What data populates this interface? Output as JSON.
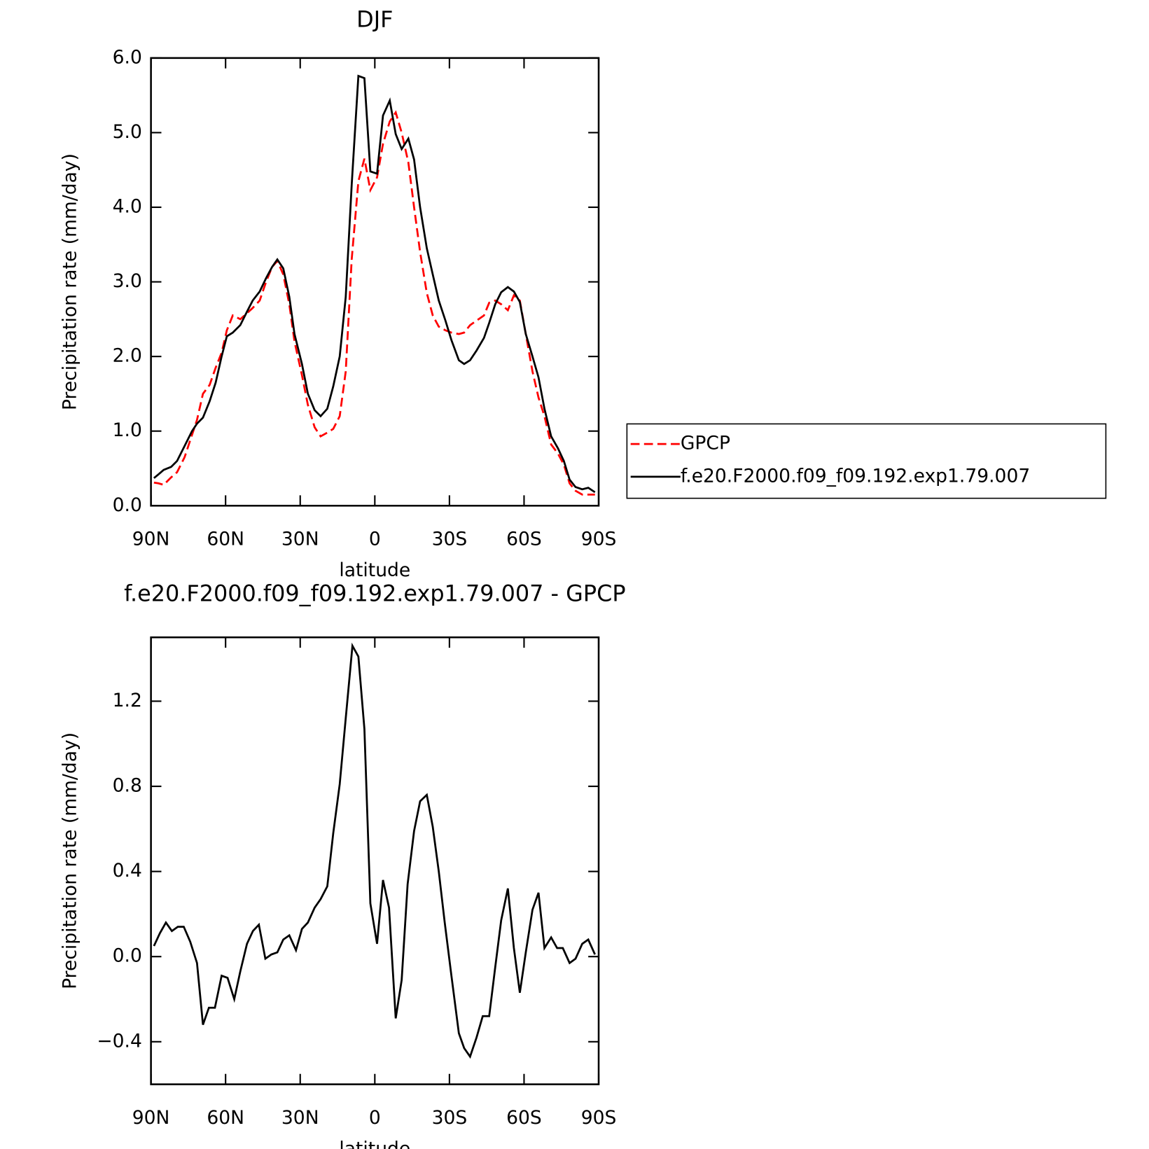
{
  "chart_data": [
    {
      "type": "line",
      "title": "DJF",
      "xlabel": "latitude",
      "ylabel": "Precipitation rate (mm/day)",
      "x": [
        88.8,
        87.0,
        84.9,
        81.9,
        79.5,
        76.5,
        73.5,
        71.5,
        69.1,
        66.4,
        64.0,
        61.6,
        59.5,
        57.1,
        54.1,
        51.4,
        49.1,
        46.3,
        43.7,
        41.3,
        39.2,
        36.8,
        34.4,
        32.3,
        29.3,
        26.9,
        24.2,
        21.8,
        19.1,
        16.7,
        14.1,
        11.7,
        9.3,
        6.6,
        4.2,
        1.8,
        -0.9,
        -3.3,
        -6.0,
        -8.4,
        -10.8,
        -13.5,
        -15.8,
        -18.2,
        -20.9,
        -23.3,
        -25.7,
        -28.4,
        -30.8,
        -33.8,
        -35.9,
        -38.3,
        -40.9,
        -43.9,
        -46.0,
        -48.4,
        -50.8,
        -53.5,
        -55.9,
        -58.3,
        -60.7,
        -63.4,
        -65.8,
        -68.2,
        -70.9,
        -73.6,
        -76.0,
        -78.3,
        -80.7,
        -83.4,
        -85.8,
        -88.5
      ],
      "series": [
        {
          "name": "GPCP",
          "color": "#ff0000",
          "dash": "dashed",
          "values": [
            0.31,
            0.3,
            0.28,
            0.38,
            0.45,
            0.65,
            0.95,
            1.15,
            1.5,
            1.62,
            1.85,
            2.05,
            2.35,
            2.55,
            2.5,
            2.58,
            2.65,
            2.75,
            3.0,
            3.2,
            3.28,
            3.1,
            2.7,
            2.2,
            1.75,
            1.35,
            1.05,
            0.93,
            0.98,
            1.03,
            1.2,
            1.8,
            3.3,
            4.35,
            4.65,
            4.23,
            4.4,
            4.85,
            5.15,
            5.27,
            5.0,
            4.6,
            4.0,
            3.4,
            2.85,
            2.55,
            2.4,
            2.35,
            2.32,
            2.3,
            2.32,
            2.42,
            2.48,
            2.55,
            2.72,
            2.75,
            2.7,
            2.62,
            2.82,
            2.75,
            2.3,
            1.8,
            1.45,
            1.2,
            0.82,
            0.7,
            0.55,
            0.3,
            0.2,
            0.15,
            0.15,
            0.15
          ]
        },
        {
          "name": "f.e20.F2000.f09_f09.192.exp1.79.007",
          "color": "#000000",
          "dash": "solid",
          "values": [
            0.37,
            0.42,
            0.48,
            0.52,
            0.6,
            0.8,
            1.0,
            1.1,
            1.18,
            1.4,
            1.65,
            2.0,
            2.27,
            2.32,
            2.42,
            2.6,
            2.75,
            2.87,
            3.05,
            3.2,
            3.3,
            3.18,
            2.8,
            2.3,
            1.9,
            1.5,
            1.28,
            1.2,
            1.3,
            1.6,
            2.0,
            2.8,
            4.3,
            5.76,
            5.73,
            4.48,
            4.45,
            5.23,
            5.43,
            4.98,
            4.78,
            4.92,
            4.64,
            4.0,
            3.45,
            3.1,
            2.75,
            2.48,
            2.22,
            1.95,
            1.9,
            1.95,
            2.08,
            2.25,
            2.45,
            2.7,
            2.86,
            2.93,
            2.87,
            2.73,
            2.3,
            2.0,
            1.72,
            1.3,
            0.93,
            0.77,
            0.6,
            0.35,
            0.25,
            0.22,
            0.24,
            0.18
          ]
        }
      ],
      "xlim": [
        90,
        -90
      ],
      "xticks": [
        {
          "value": 90,
          "label": "90N"
        },
        {
          "value": 60,
          "label": "60N"
        },
        {
          "value": 30,
          "label": "30N"
        },
        0,
        {
          "value": -30,
          "label": "30S"
        },
        {
          "value": -60,
          "label": "60S"
        },
        {
          "value": -90,
          "label": "90S"
        }
      ],
      "ylim": [
        0,
        6
      ],
      "yticks": [
        {
          "value": 0,
          "label": "0.0"
        },
        {
          "value": 1,
          "label": "1.0"
        },
        {
          "value": 2,
          "label": "2.0"
        },
        {
          "value": 3,
          "label": "3.0"
        },
        {
          "value": 4,
          "label": "4.0"
        },
        {
          "value": 5,
          "label": "5.0"
        },
        {
          "value": 6,
          "label": "6.0"
        }
      ],
      "legend": "right"
    },
    {
      "type": "line",
      "title": "f.e20.F2000.f09_f09.192.exp1.79.007 - GPCP",
      "xlabel": "latitude",
      "ylabel": "Precipitation rate (mm/day)",
      "x": [
        88.8,
        86.4,
        84.0,
        81.6,
        79.2,
        76.8,
        74.2,
        71.5,
        69.1,
        66.7,
        64.3,
        61.6,
        59.2,
        56.5,
        54.1,
        51.4,
        49.0,
        46.6,
        44.0,
        41.6,
        39.2,
        36.8,
        34.4,
        31.7,
        29.3,
        26.9,
        24.2,
        21.8,
        19.1,
        16.7,
        14.1,
        11.7,
        9.0,
        6.6,
        4.2,
        1.8,
        -0.9,
        -3.3,
        -5.7,
        -8.4,
        -10.8,
        -13.2,
        -15.8,
        -18.2,
        -20.9,
        -23.3,
        -25.7,
        -28.1,
        -30.8,
        -33.8,
        -35.9,
        -38.3,
        -40.9,
        -43.4,
        -46.0,
        -48.4,
        -50.8,
        -53.5,
        -55.9,
        -58.3,
        -60.7,
        -63.4,
        -65.8,
        -68.2,
        -70.9,
        -73.3,
        -75.6,
        -78.3,
        -80.7,
        -83.4,
        -85.8,
        -88.5
      ],
      "series": [
        {
          "color": "#000000",
          "dash": "solid",
          "values": [
            0.05,
            0.11,
            0.16,
            0.12,
            0.14,
            0.14,
            0.07,
            -0.03,
            -0.32,
            -0.24,
            -0.24,
            -0.09,
            -0.1,
            -0.2,
            -0.07,
            0.06,
            0.12,
            0.15,
            -0.01,
            0.01,
            0.02,
            0.08,
            0.1,
            0.03,
            0.13,
            0.16,
            0.23,
            0.27,
            0.33,
            0.58,
            0.81,
            1.12,
            1.46,
            1.41,
            1.07,
            0.25,
            0.06,
            0.36,
            0.23,
            -0.29,
            -0.11,
            0.34,
            0.59,
            0.73,
            0.76,
            0.61,
            0.4,
            0.16,
            -0.09,
            -0.36,
            -0.43,
            -0.47,
            -0.38,
            -0.28,
            -0.28,
            -0.05,
            0.17,
            0.32,
            0.04,
            -0.17,
            0.02,
            0.22,
            0.3,
            0.04,
            0.09,
            0.04,
            0.04,
            -0.03,
            -0.01,
            0.06,
            0.08,
            0.01
          ]
        }
      ],
      "xlim": [
        90,
        -90
      ],
      "xticks": [
        {
          "value": 90,
          "label": "90N"
        },
        {
          "value": 60,
          "label": "60N"
        },
        {
          "value": 30,
          "label": "30N"
        },
        0,
        {
          "value": -30,
          "label": "30S"
        },
        {
          "value": -60,
          "label": "60S"
        },
        {
          "value": -90,
          "label": "90S"
        }
      ],
      "ylim": [
        -0.6,
        1.5
      ],
      "yticks": [
        {
          "value": -0.4,
          "label": "−0.4"
        },
        {
          "value": 0,
          "label": "0.0"
        },
        {
          "value": 0.4,
          "label": "0.4"
        },
        {
          "value": 0.8,
          "label": "0.8"
        },
        {
          "value": 1.2,
          "label": "1.2"
        }
      ]
    }
  ]
}
